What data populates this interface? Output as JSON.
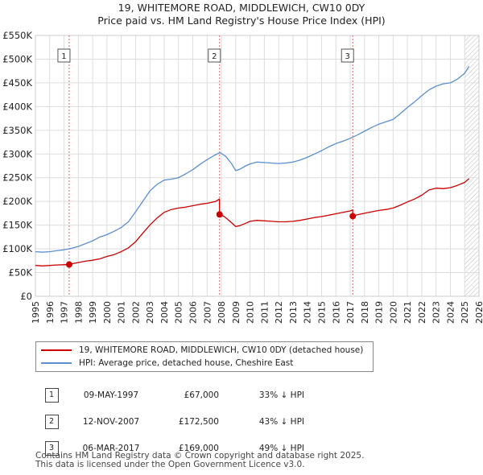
{
  "chart_data": {
    "type": "line",
    "title": "19, WHITEMORE ROAD, MIDDLEWICH, CW10 0DY",
    "subtitle": "Price paid vs. HM Land Registry's House Price Index (HPI)",
    "ylim": [
      0,
      550000
    ],
    "xlim": [
      1995,
      2026
    ],
    "y_ticks": [
      0,
      50000,
      100000,
      150000,
      200000,
      250000,
      300000,
      350000,
      400000,
      450000,
      500000,
      550000
    ],
    "y_tick_labels": [
      "£0",
      "£50K",
      "£100K",
      "£150K",
      "£200K",
      "£250K",
      "£300K",
      "£350K",
      "£400K",
      "£450K",
      "£500K",
      "£550K"
    ],
    "x_ticks": [
      1995,
      1996,
      1997,
      1998,
      1999,
      2000,
      2001,
      2002,
      2003,
      2004,
      2005,
      2006,
      2007,
      2008,
      2009,
      2010,
      2011,
      2012,
      2013,
      2014,
      2015,
      2016,
      2017,
      2018,
      2019,
      2020,
      2021,
      2022,
      2023,
      2024,
      2025,
      2026
    ],
    "x_tick_labels": [
      "1995",
      "1996",
      "1997",
      "1998",
      "1999",
      "2000",
      "2001",
      "2002",
      "2003",
      "2004",
      "2005",
      "2006",
      "2007",
      "2008",
      "2009",
      "2010",
      "2011",
      "2012",
      "2013",
      "2014",
      "2015",
      "2016",
      "2017",
      "2018",
      "2019",
      "2020",
      "2021",
      "2022",
      "2023",
      "2024",
      "2025",
      "2026"
    ],
    "grid": true,
    "forecast_from": 2025.0,
    "series": [
      {
        "name": "19, WHITEMORE ROAD, MIDDLEWICH, CW10 0DY (detached house)",
        "color": "#cc0000",
        "x": [
          1995.0,
          1995.5,
          1996.0,
          1996.5,
          1997.0,
          1997.36,
          1997.8,
          1998.5,
          1999.0,
          1999.5,
          2000.0,
          2000.5,
          2001.0,
          2001.5,
          2002.0,
          2002.5,
          2003.0,
          2003.5,
          2004.0,
          2004.5,
          2005.0,
          2005.5,
          2006.0,
          2006.5,
          2007.0,
          2007.6,
          2007.86,
          2007.87,
          2008.2,
          2008.6,
          2009.0,
          2009.3,
          2009.7,
          2010.0,
          2010.5,
          2011.0,
          2011.5,
          2012.0,
          2012.5,
          2013.0,
          2013.5,
          2014.0,
          2014.5,
          2015.0,
          2015.5,
          2016.0,
          2016.5,
          2017.0,
          2017.17,
          2017.18,
          2017.5,
          2018.0,
          2018.5,
          2019.0,
          2019.5,
          2020.0,
          2020.5,
          2021.0,
          2021.5,
          2022.0,
          2022.5,
          2023.0,
          2023.5,
          2024.0,
          2024.5,
          2025.0,
          2025.3
        ],
        "values": [
          65000,
          64000,
          65000,
          66000,
          66500,
          67000,
          70000,
          74000,
          76000,
          79000,
          84000,
          88000,
          94000,
          102000,
          115000,
          133000,
          150000,
          165000,
          177000,
          183000,
          186000,
          188000,
          191000,
          194000,
          196000,
          200000,
          205000,
          172500,
          168000,
          158000,
          147000,
          149000,
          154000,
          158000,
          160000,
          159000,
          158000,
          157000,
          157000,
          158000,
          160000,
          163000,
          166000,
          168000,
          171000,
          174000,
          177000,
          180000,
          182000,
          169000,
          172000,
          175000,
          178000,
          181000,
          183000,
          186000,
          192000,
          199000,
          205000,
          213000,
          224000,
          228000,
          227000,
          229000,
          234000,
          240000,
          248000
        ]
      },
      {
        "name": "HPI: Average price, detached house, Cheshire East",
        "color": "#5b8fd0",
        "x": [
          1995.0,
          1995.5,
          1996.0,
          1996.5,
          1997.0,
          1997.5,
          1998.0,
          1998.5,
          1999.0,
          1999.5,
          2000.0,
          2000.5,
          2001.0,
          2001.5,
          2002.0,
          2002.5,
          2003.0,
          2003.5,
          2004.0,
          2004.5,
          2005.0,
          2005.5,
          2006.0,
          2006.5,
          2007.0,
          2007.5,
          2007.9,
          2008.3,
          2008.7,
          2009.0,
          2009.3,
          2009.7,
          2010.0,
          2010.5,
          2011.0,
          2011.5,
          2012.0,
          2012.5,
          2013.0,
          2013.5,
          2014.0,
          2014.5,
          2015.0,
          2015.5,
          2016.0,
          2016.5,
          2017.0,
          2017.5,
          2018.0,
          2018.5,
          2019.0,
          2019.5,
          2020.0,
          2020.5,
          2021.0,
          2021.5,
          2022.0,
          2022.5,
          2023.0,
          2023.5,
          2024.0,
          2024.5,
          2025.0,
          2025.3
        ],
        "values": [
          94000,
          93000,
          94000,
          96000,
          98000,
          101000,
          105000,
          111000,
          117000,
          125000,
          130000,
          137000,
          145000,
          157000,
          178000,
          200000,
          222000,
          236000,
          245000,
          247000,
          250000,
          258000,
          267000,
          278000,
          288000,
          297000,
          303000,
          295000,
          280000,
          265000,
          268000,
          275000,
          279000,
          283000,
          282000,
          281000,
          280000,
          281000,
          283000,
          287000,
          293000,
          300000,
          307000,
          315000,
          322000,
          327000,
          333000,
          340000,
          348000,
          356000,
          363000,
          368000,
          373000,
          385000,
          398000,
          410000,
          423000,
          435000,
          443000,
          448000,
          450000,
          458000,
          470000,
          485000
        ]
      }
    ],
    "markers": [
      {
        "label": "1",
        "x": 1997.36,
        "y": 67000
      },
      {
        "label": "2",
        "x": 2007.87,
        "y": 172500
      },
      {
        "label": "3",
        "x": 2017.18,
        "y": 169000
      }
    ]
  },
  "legend": [
    {
      "label": "19, WHITEMORE ROAD, MIDDLEWICH, CW10 0DY (detached house)",
      "color": "#cc0000"
    },
    {
      "label": "HPI: Average price, detached house, Cheshire East",
      "color": "#5b8fd0"
    }
  ],
  "sales": [
    {
      "num": "1",
      "date": "09-MAY-1997",
      "price": "£67,000",
      "hpi": "33% ↓ HPI"
    },
    {
      "num": "2",
      "date": "12-NOV-2007",
      "price": "£172,500",
      "hpi": "43% ↓ HPI"
    },
    {
      "num": "3",
      "date": "06-MAR-2017",
      "price": "£169,000",
      "hpi": "49% ↓ HPI"
    }
  ],
  "footer": {
    "line1": "Contains HM Land Registry data © Crown copyright and database right 2025.",
    "line2": "This data is licensed under the Open Government Licence v3.0."
  }
}
